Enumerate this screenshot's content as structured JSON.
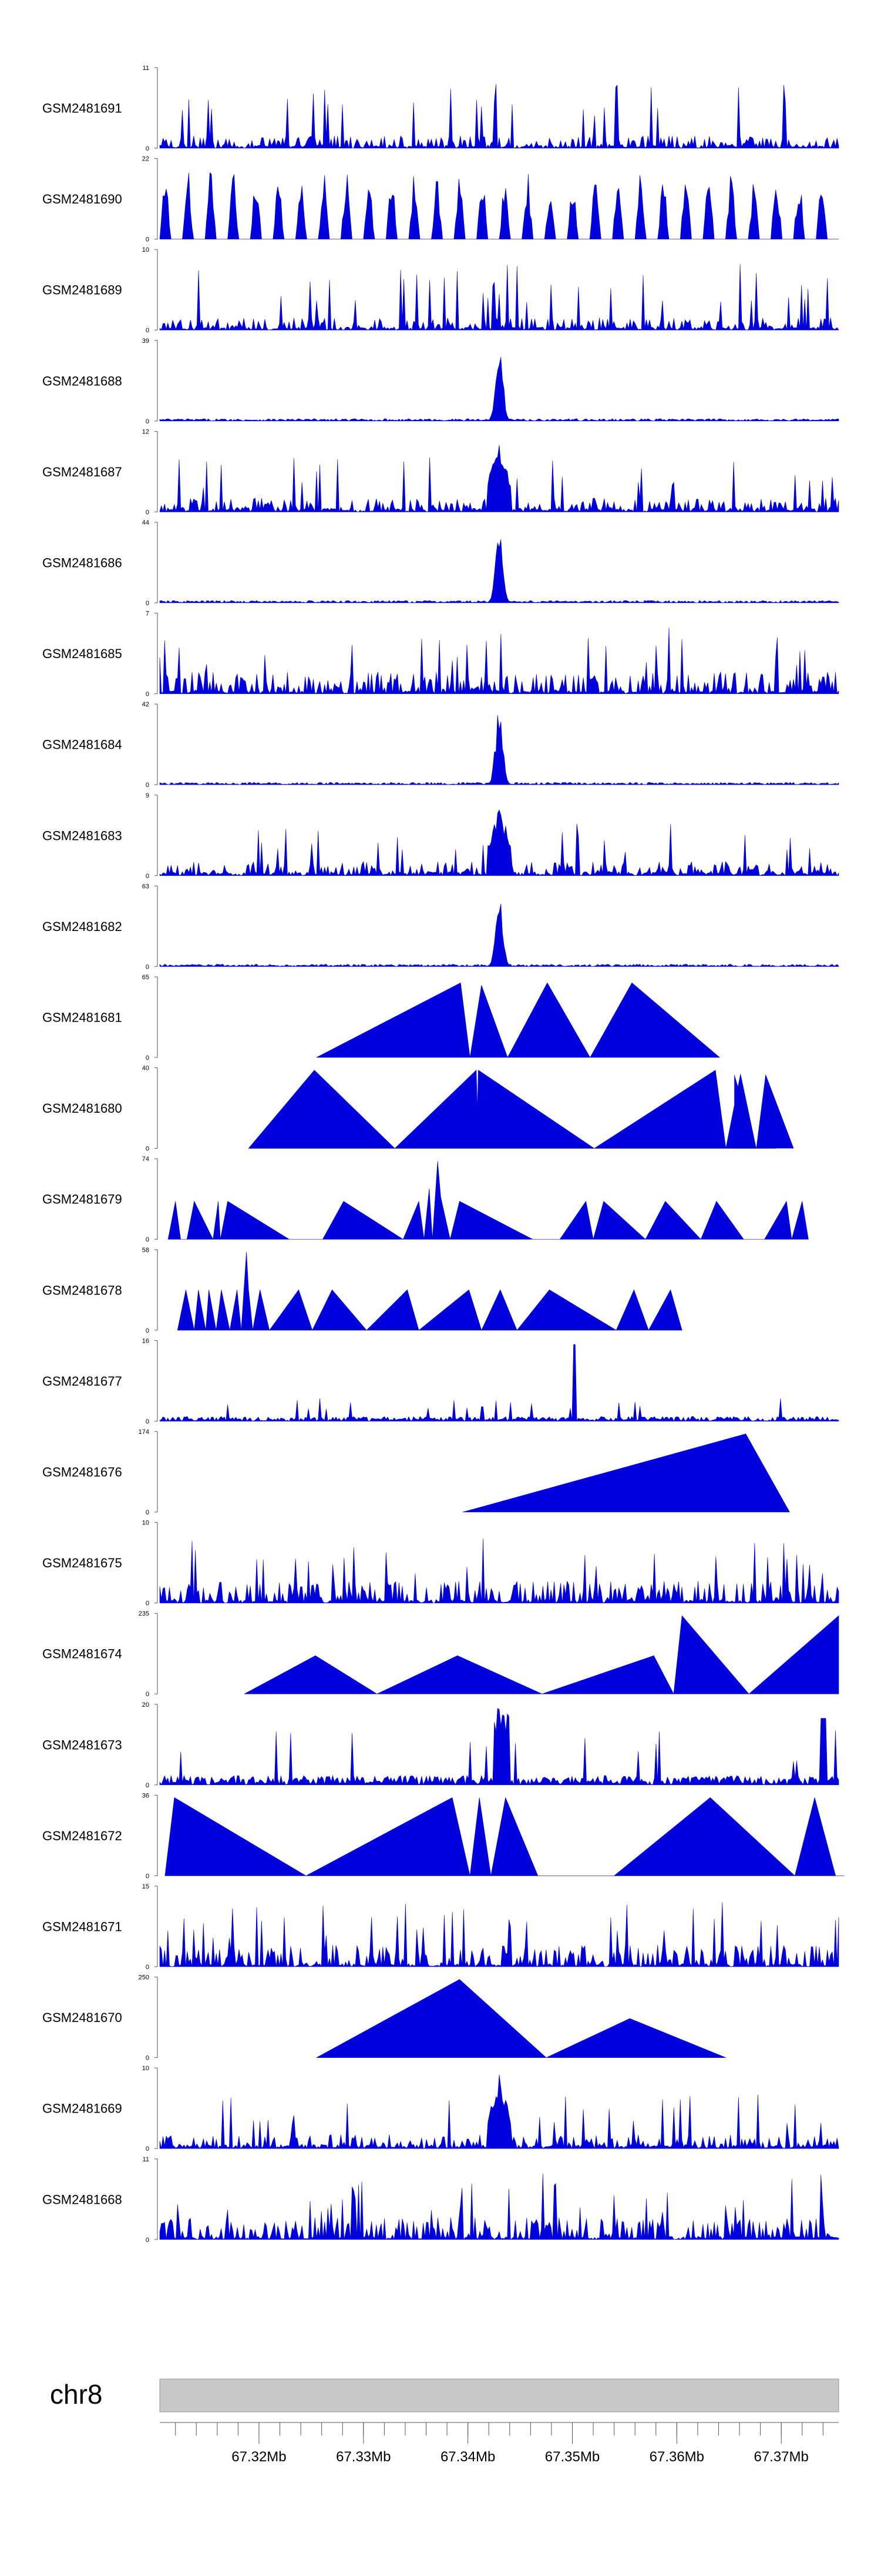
{
  "chart_data": {
    "type": "area",
    "colors": {
      "signal": "#0000dd",
      "ideogram": "#c8c8c8",
      "axis": "#555555"
    },
    "tracks": [
      {
        "name": "GSM2481691",
        "ymin": 0,
        "ymax": 11,
        "profile": "noisy",
        "x": [],
        "y": []
      },
      {
        "name": "GSM2481690",
        "ymin": 0,
        "ymax": 22,
        "profile": "sparse",
        "x": [],
        "y": []
      },
      {
        "name": "GSM2481689",
        "ymin": 0,
        "ymax": 10,
        "profile": "noisy",
        "x": [],
        "y": []
      },
      {
        "name": "GSM2481688",
        "ymin": 0,
        "ymax": 39,
        "profile": "peak",
        "x": [],
        "y": []
      },
      {
        "name": "GSM2481687",
        "ymin": 0,
        "ymax": 12,
        "profile": "noisy-peak",
        "x": [],
        "y": []
      },
      {
        "name": "GSM2481686",
        "ymin": 0,
        "ymax": 44,
        "profile": "peak",
        "x": [],
        "y": []
      },
      {
        "name": "GSM2481685",
        "ymin": 0,
        "ymax": 7,
        "profile": "dense",
        "x": [],
        "y": []
      },
      {
        "name": "GSM2481684",
        "ymin": 0,
        "ymax": 42,
        "profile": "peak",
        "x": [],
        "y": []
      },
      {
        "name": "GSM2481683",
        "ymin": 0,
        "ymax": 9,
        "profile": "noisy-peak",
        "x": [],
        "y": []
      },
      {
        "name": "GSM2481682",
        "ymin": 0,
        "ymax": 63,
        "profile": "peak",
        "x": [],
        "y": []
      },
      {
        "name": "GSM2481681",
        "ymin": 0,
        "ymax": 65,
        "profile": "explicit",
        "x": [
          67.3255,
          67.3393,
          67.3402,
          67.3413,
          67.3438,
          67.3476,
          67.3517,
          67.3557,
          67.3641
        ],
        "y": [
          0,
          62,
          0,
          60,
          0,
          62,
          0,
          62,
          0
        ]
      },
      {
        "name": "GSM2481680",
        "ymin": 0,
        "ymax": 40,
        "profile": "explicit",
        "x": [
          67.319,
          67.3253,
          67.333,
          67.3408,
          67.3409,
          67.341,
          67.3521,
          67.3637,
          67.3647,
          67.3661,
          67.3676,
          67.3695
        ],
        "y": [
          0,
          40,
          0,
          40,
          20,
          40,
          0,
          40,
          0,
          38,
          0,
          0
        ],
        "note_points": [
          [
            67.3655,
            38
          ],
          [
            67.3676,
            0
          ],
          [
            67.3685,
            38
          ],
          [
            67.3712,
            0
          ]
        ]
      },
      {
        "name": "GSM2481679",
        "ymin": 0,
        "ymax": 74,
        "profile": "explicit",
        "x": [
          67.3113,
          67.312,
          67.3125,
          67.3131,
          67.3138,
          67.3156,
          67.3161,
          67.3163,
          67.317,
          67.3229,
          67.3261,
          67.3281,
          67.3338,
          67.3353,
          67.3358,
          67.3363,
          67.3366,
          67.3371,
          67.3374,
          67.3383,
          67.3392,
          67.3462,
          67.3488,
          67.3513,
          67.352,
          67.353,
          67.357,
          67.3589,
          67.3623,
          67.3638,
          67.3664,
          67.3684,
          67.3705,
          67.371,
          67.372,
          67.3726
        ],
        "y": [
          0,
          36,
          0,
          0,
          36,
          0,
          36,
          0,
          36,
          0,
          0,
          36,
          0,
          36,
          0,
          48,
          0,
          74,
          40,
          0,
          36,
          0,
          0,
          36,
          0,
          36,
          0,
          36,
          0,
          36,
          0,
          0,
          36,
          0,
          36,
          0
        ]
      },
      {
        "name": "GSM2481678",
        "ymin": 0,
        "ymax": 58,
        "profile": "explicit",
        "x": [
          67.3122,
          67.313,
          67.3138,
          67.3142,
          67.3149,
          67.3152,
          67.3159,
          67.3164,
          67.3172,
          67.3179,
          67.3183,
          67.3188,
          67.319,
          67.3194,
          67.3201,
          67.321,
          67.3238,
          67.3251,
          67.327,
          67.3303,
          67.3342,
          67.3353,
          67.3401,
          67.3413,
          67.3431,
          67.3447,
          67.3478,
          67.3542,
          67.3559,
          67.3573,
          67.3594,
          67.3605
        ],
        "y": [
          0,
          30,
          0,
          30,
          0,
          30,
          0,
          30,
          0,
          30,
          0,
          58,
          30,
          0,
          30,
          0,
          30,
          0,
          30,
          0,
          30,
          0,
          30,
          0,
          30,
          0,
          30,
          0,
          30,
          0,
          30,
          0
        ]
      },
      {
        "name": "GSM2481677",
        "ymin": 0,
        "ymax": 16,
        "profile": "spike",
        "x": [],
        "y": []
      },
      {
        "name": "GSM2481676",
        "ymin": 0,
        "ymax": 174,
        "profile": "explicit",
        "x": [
          67.3395,
          67.3666,
          67.3708
        ],
        "y": [
          0,
          174,
          0
        ]
      },
      {
        "name": "GSM2481675",
        "ymin": 0,
        "ymax": 10,
        "profile": "dense",
        "x": [],
        "y": []
      },
      {
        "name": "GSM2481674",
        "ymin": 0,
        "ymax": 235,
        "profile": "explicit",
        "x": [
          67.3186,
          67.3254,
          67.3313,
          67.339,
          67.3471,
          67.3578,
          67.3597,
          67.3605,
          67.3669,
          67.3755
        ],
        "y": [
          0,
          115,
          0,
          115,
          0,
          115,
          0,
          235,
          0,
          235
        ]
      },
      {
        "name": "GSM2481673",
        "ymin": 0,
        "ymax": 20,
        "profile": "sparse-spikes",
        "x": [],
        "y": []
      },
      {
        "name": "GSM2481672",
        "ymin": 0,
        "ymax": 36,
        "profile": "explicit",
        "x": [
          67.311,
          67.3119,
          67.3245,
          67.3385,
          67.3402,
          67.3411,
          67.3422,
          67.3436,
          67.3467,
          67.354,
          67.3632,
          67.3713,
          67.3732,
          67.3752,
          67.376
        ],
        "y": [
          0,
          36,
          0,
          36,
          0,
          36,
          0,
          36,
          0,
          0,
          36,
          0,
          36,
          0,
          0
        ]
      },
      {
        "name": "GSM2481671",
        "ymin": 0,
        "ymax": 15,
        "profile": "dense",
        "x": [],
        "y": []
      },
      {
        "name": "GSM2481670",
        "ymin": 0,
        "ymax": 250,
        "profile": "explicit",
        "x": [
          67.3255,
          67.3392,
          67.3475,
          67.3555,
          67.3647
        ],
        "y": [
          0,
          250,
          0,
          125,
          0
        ]
      },
      {
        "name": "GSM2481669",
        "ymin": 0,
        "ymax": 10,
        "profile": "noisy-peak",
        "x": [],
        "y": []
      },
      {
        "name": "GSM2481668",
        "ymin": 0,
        "ymax": 11,
        "profile": "dense",
        "x": [],
        "y": []
      }
    ],
    "genome_axis": {
      "chromosome": "chr8",
      "xlim": [
        67.3105,
        67.3755
      ],
      "tick_labels": [
        "67.32Mb",
        "67.33Mb",
        "67.34Mb",
        "67.35Mb",
        "67.36Mb",
        "67.37Mb"
      ],
      "tick_values": [
        67.32,
        67.33,
        67.34,
        67.35,
        67.36,
        67.37
      ],
      "minor_step": 0.002
    }
  }
}
